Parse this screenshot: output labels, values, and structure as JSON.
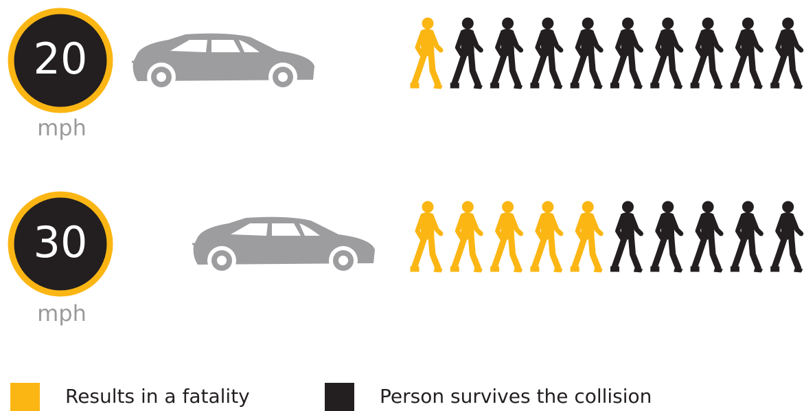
{
  "chart_data": {
    "type": "pictogram",
    "unit": "mph",
    "categories": [
      "20",
      "30"
    ],
    "series": [
      {
        "name": "Results in a fatality",
        "color": "#fbb614",
        "values": [
          1,
          5
        ]
      },
      {
        "name": "Person survives the collision",
        "color": "#231f20",
        "values": [
          9,
          5
        ]
      }
    ]
  }
}
